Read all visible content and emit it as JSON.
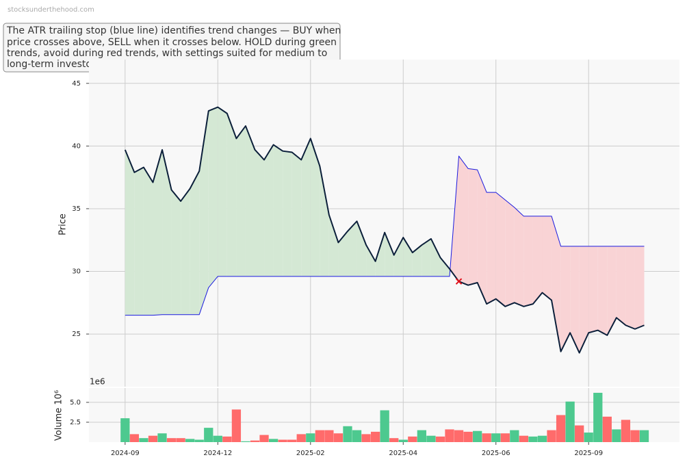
{
  "watermark": "stocksunderthehood.com",
  "annotation": [
    "The ATR trailing stop (blue line) identifies trend changes — BUY when",
    "price crosses above, SELL when it crosses below. HOLD during green",
    "trends, avoid during red trends, with settings suited for medium to",
    "long-term investors."
  ],
  "chart_data": [
    {
      "type": "line",
      "y_label": "Price",
      "x": [
        0,
        1,
        2,
        3,
        4,
        5,
        6,
        7,
        8,
        9,
        10,
        11,
        12,
        13,
        14,
        15,
        16,
        17,
        18,
        19,
        20,
        21,
        22,
        23,
        24,
        25,
        26,
        27,
        28,
        29,
        30,
        31,
        32,
        33,
        34,
        35,
        36,
        37,
        38,
        39,
        40,
        41,
        42,
        43,
        44,
        45,
        46,
        47,
        48,
        49,
        50,
        51,
        52,
        53,
        54,
        55,
        56
      ],
      "xlim": [
        -3.9,
        59.8
      ],
      "ylim": [
        20.8,
        46.9
      ],
      "yticks": [
        25,
        30,
        35,
        40,
        45
      ],
      "grid": true,
      "series": [
        {
          "name": "Price",
          "color": "#0b1f3a",
          "values": [
            39.7,
            37.9,
            38.3,
            37.1,
            39.7,
            36.5,
            35.6,
            36.6,
            38.0,
            42.8,
            43.1,
            42.6,
            40.6,
            41.6,
            39.7,
            38.9,
            40.1,
            39.6,
            39.5,
            38.9,
            40.6,
            38.4,
            34.5,
            32.3,
            33.2,
            34.0,
            32.1,
            30.8,
            33.1,
            31.3,
            32.7,
            31.5,
            32.1,
            32.6,
            31.1,
            30.2,
            29.2,
            28.9,
            29.1,
            27.4,
            27.8,
            27.2,
            27.5,
            27.2,
            27.4,
            28.3,
            27.7,
            23.6,
            25.1,
            23.5,
            25.1,
            25.3,
            24.9,
            26.3,
            25.7,
            25.4,
            25.7
          ]
        },
        {
          "name": "ATR Trailing Stop",
          "color": "#1a1adf",
          "values": [
            26.5,
            26.5,
            26.5,
            26.5,
            26.55,
            26.55,
            26.55,
            26.55,
            26.55,
            28.7,
            29.6,
            29.6,
            29.6,
            29.6,
            29.6,
            29.6,
            29.6,
            29.6,
            29.6,
            29.6,
            29.6,
            29.6,
            29.6,
            29.6,
            29.6,
            29.6,
            29.6,
            29.6,
            29.6,
            29.6,
            29.6,
            29.6,
            29.6,
            29.6,
            29.6,
            29.6,
            39.2,
            38.2,
            38.1,
            36.3,
            36.3,
            35.7,
            35.1,
            34.4,
            34.4,
            34.4,
            34.4,
            32.0,
            32.0,
            32.0,
            32.0,
            32.0,
            32.0,
            32.0,
            32.0,
            32.0,
            32.0
          ]
        }
      ],
      "up_fill": "#d4e8d4",
      "down_fill": "#f9d3d5",
      "sell_signals": {
        "x": [
          36
        ],
        "values": [
          29.2
        ],
        "color": "#e0101a"
      }
    },
    {
      "type": "bar",
      "y_label": "Volume  10⁶",
      "offset_label": "1e6",
      "ylim": [
        0,
        6.8
      ],
      "yticks": [
        2.5,
        {
          "value": 5,
          "label": "5.0"
        }
      ],
      "grid": true,
      "xticks": [
        {
          "value": 0,
          "label": "2024-09"
        },
        {
          "value": 10,
          "label": "2024-12"
        },
        {
          "value": 20,
          "label": "2025-02"
        },
        {
          "value": 30,
          "label": "2025-04"
        },
        {
          "value": 40,
          "label": "2025-06"
        },
        {
          "value": 50,
          "label": "2025-09"
        }
      ],
      "values": [
        3.0,
        1.0,
        0.5,
        0.8,
        1.1,
        0.5,
        0.5,
        0.4,
        0.3,
        1.8,
        0.8,
        0.7,
        4.1,
        0.1,
        0.2,
        0.9,
        0.4,
        0.3,
        0.3,
        1.0,
        1.1,
        1.5,
        1.5,
        1.1,
        2.0,
        1.5,
        1.0,
        1.3,
        4.0,
        0.5,
        0.3,
        0.7,
        1.5,
        0.8,
        0.7,
        1.6,
        1.5,
        1.3,
        1.4,
        1.1,
        1.1,
        1.1,
        1.5,
        0.8,
        0.7,
        0.8,
        1.5,
        3.4,
        5.1,
        2.1,
        1.2,
        6.2,
        3.2,
        1.6,
        2.8,
        1.5,
        1.5
      ],
      "colors": [
        "#4dc98f",
        "#ff6b6b",
        "#4dc98f",
        "#ff6b6b",
        "#4dc98f",
        "#ff6b6b",
        "#ff6b6b",
        "#4dc98f",
        "#4dc98f",
        "#4dc98f",
        "#4dc98f",
        "#ff6b6b",
        "#ff6b6b",
        "#4dc98f",
        "#ff6b6b",
        "#ff6b6b",
        "#4dc98f",
        "#ff6b6b",
        "#ff6b6b",
        "#ff6b6b",
        "#4dc98f",
        "#ff6b6b",
        "#ff6b6b",
        "#ff6b6b",
        "#4dc98f",
        "#4dc98f",
        "#ff6b6b",
        "#ff6b6b",
        "#4dc98f",
        "#ff6b6b",
        "#4dc98f",
        "#ff6b6b",
        "#4dc98f",
        "#4dc98f",
        "#ff6b6b",
        "#ff6b6b",
        "#ff6b6b",
        "#ff6b6b",
        "#4dc98f",
        "#ff6b6b",
        "#4dc98f",
        "#ff6b6b",
        "#4dc98f",
        "#ff6b6b",
        "#4dc98f",
        "#4dc98f",
        "#ff6b6b",
        "#ff6b6b",
        "#4dc98f",
        "#ff6b6b",
        "#4dc98f",
        "#4dc98f",
        "#ff6b6b",
        "#4dc98f",
        "#ff6b6b",
        "#ff6b6b",
        "#4dc98f"
      ]
    }
  ]
}
